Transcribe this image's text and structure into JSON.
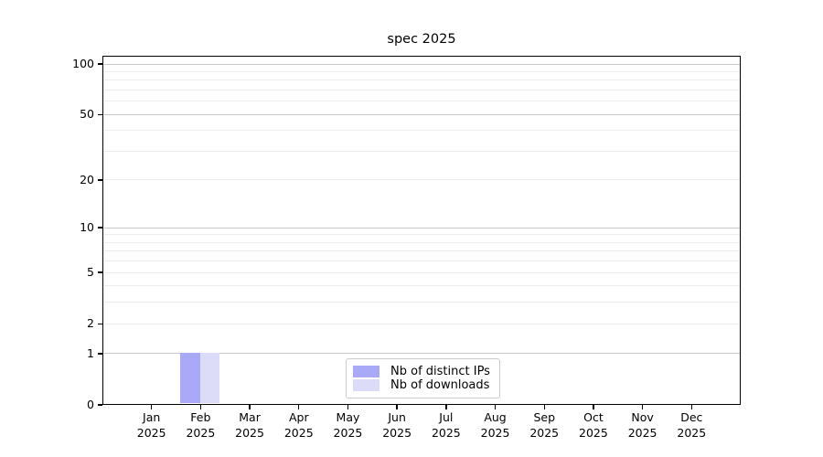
{
  "title": "spec 2025",
  "colors": {
    "bar_distinct_ips": "#a9a9f7",
    "bar_downloads": "#dcdcf9",
    "grid_minor": "#ececec",
    "grid_major": "#c9c9c9",
    "axis": "#000000",
    "background": "#ffffff"
  },
  "chart_data": {
    "type": "bar",
    "title": "spec 2025",
    "categories": [
      "Jan 2025",
      "Feb 2025",
      "Mar 2025",
      "Apr 2025",
      "May 2025",
      "Jun 2025",
      "Jul 2025",
      "Aug 2025",
      "Sep 2025",
      "Oct 2025",
      "Nov 2025",
      "Dec 2025"
    ],
    "series": [
      {
        "name": "Nb of distinct IPs",
        "color_key": "bar_distinct_ips",
        "values": [
          0,
          1,
          0,
          0,
          0,
          0,
          0,
          0,
          0,
          0,
          0,
          0
        ]
      },
      {
        "name": "Nb of downloads",
        "color_key": "bar_downloads",
        "values": [
          0,
          1,
          0,
          0,
          0,
          0,
          0,
          0,
          0,
          0,
          0,
          0
        ]
      }
    ],
    "xlabel": "",
    "ylabel": "",
    "y_scale": "log1p",
    "y_ticks": [
      100,
      50,
      20,
      10,
      5,
      2,
      1,
      0
    ],
    "y_grid_minor": [
      2,
      3,
      4,
      5,
      6,
      7,
      8,
      9,
      20,
      30,
      40,
      60,
      70,
      80,
      90
    ],
    "y_grid_major": [
      1,
      10,
      50,
      100
    ],
    "ylim": [
      0,
      112
    ],
    "grid": true,
    "legend_position": "lower center"
  }
}
